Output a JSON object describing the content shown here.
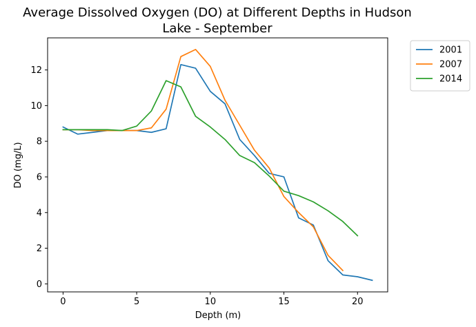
{
  "chart_data": {
    "type": "line",
    "title_line1": "Average Dissolved Oxygen (DO) at Different Depths in Hudson",
    "title_line2": "Lake - September",
    "xlabel": "Depth (m)",
    "ylabel": "DO (mg/L)",
    "xlim": [
      -1.05,
      22.05
    ],
    "ylim": [
      -0.45,
      13.8
    ],
    "xticks": [
      0,
      5,
      10,
      15,
      20
    ],
    "yticks": [
      0,
      2,
      4,
      6,
      8,
      10,
      12
    ],
    "grid": false,
    "legend_position": "outside-top-right",
    "series": [
      {
        "name": "2001",
        "color": "#1f77b4",
        "x": [
          0,
          1,
          2,
          3,
          4,
          5,
          6,
          7,
          8,
          9,
          10,
          11,
          12,
          13,
          14,
          15,
          16,
          17,
          18,
          19,
          20,
          21
        ],
        "y": [
          8.8,
          8.4,
          8.5,
          8.6,
          8.6,
          8.6,
          8.5,
          8.7,
          12.3,
          12.1,
          10.8,
          10.1,
          8.1,
          7.2,
          6.2,
          6.0,
          3.7,
          3.3,
          1.3,
          0.5,
          0.4,
          0.2
        ]
      },
      {
        "name": "2007",
        "color": "#ff7f0e",
        "x": [
          0,
          1,
          2,
          3,
          4,
          5,
          6,
          7,
          8,
          9,
          10,
          11,
          12,
          13,
          14,
          15,
          16,
          17,
          18,
          19
        ],
        "y": [
          8.65,
          8.65,
          8.6,
          8.6,
          8.6,
          8.6,
          8.75,
          9.8,
          12.75,
          13.15,
          12.2,
          10.3,
          8.9,
          7.5,
          6.5,
          4.9,
          4.0,
          3.2,
          1.6,
          0.75
        ]
      },
      {
        "name": "2014",
        "color": "#2ca02c",
        "x": [
          0,
          1,
          2,
          3,
          4,
          5,
          6,
          7,
          8,
          9,
          10,
          11,
          12,
          13,
          14,
          15,
          16,
          17,
          18,
          19,
          20
        ],
        "y": [
          8.65,
          8.65,
          8.65,
          8.65,
          8.6,
          8.85,
          9.7,
          11.4,
          11.05,
          9.4,
          8.8,
          8.1,
          7.2,
          6.8,
          6.05,
          5.2,
          4.95,
          4.6,
          4.1,
          3.5,
          2.7
        ]
      }
    ]
  }
}
